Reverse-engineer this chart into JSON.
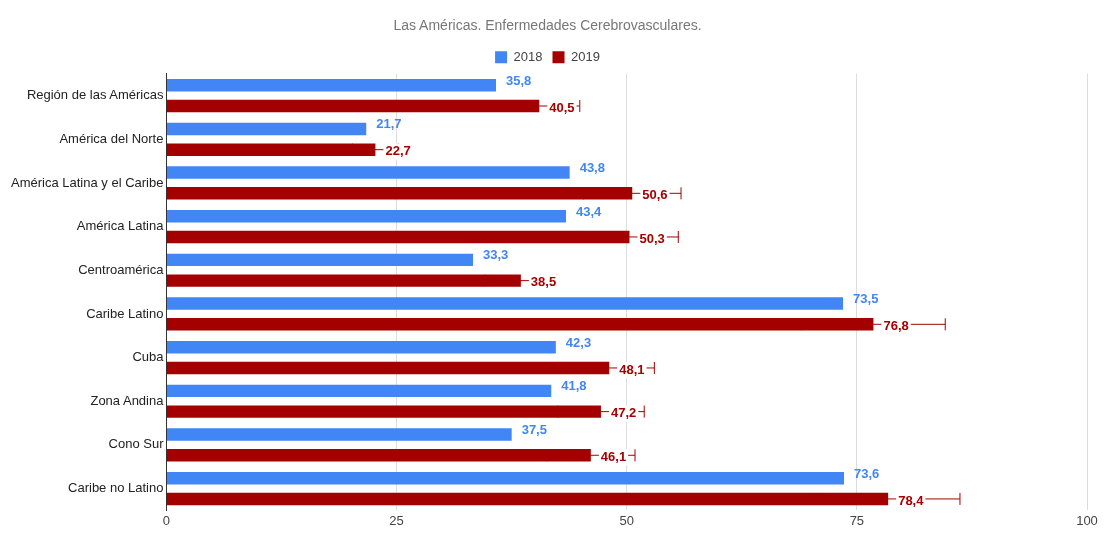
{
  "chart_data": {
    "type": "bar",
    "orientation": "horizontal",
    "title": "Las Américas. Enfermedades Cerebrovasculares.",
    "categories": [
      "Región de las Américas",
      "América del Norte",
      "América Latina y el Caribe",
      "América Latina",
      "Centroamérica",
      "Caribe Latino",
      "Cuba",
      "Zona Andina",
      "Cono Sur",
      "Caribe no Latino"
    ],
    "series": [
      {
        "name": "2018",
        "color": "#4285f4",
        "values": [
          35.8,
          21.7,
          43.8,
          43.4,
          33.3,
          73.5,
          42.3,
          41.8,
          37.5,
          73.6
        ],
        "value_labels": [
          "35,8",
          "21,7",
          "43,8",
          "43,4",
          "33,3",
          "73,5",
          "42,3",
          "41,8",
          "37,5",
          "73,6"
        ]
      },
      {
        "name": "2019",
        "color": "#a50000",
        "values": [
          40.5,
          22.7,
          50.6,
          50.3,
          38.5,
          76.8,
          48.1,
          47.2,
          46.1,
          78.4
        ],
        "value_labels": [
          "40,5",
          "22,7",
          "50,6",
          "50,3",
          "38,5",
          "76,8",
          "48,1",
          "47,2",
          "46,1",
          "78,4"
        ],
        "errors": [
          4.4,
          2.5,
          5.3,
          5.3,
          3.9,
          7.8,
          4.9,
          4.7,
          4.8,
          7.8
        ]
      }
    ],
    "xlim": [
      0,
      100
    ],
    "xticks": [
      0,
      25,
      50,
      75,
      100
    ],
    "grid": "x",
    "legend": "top"
  }
}
